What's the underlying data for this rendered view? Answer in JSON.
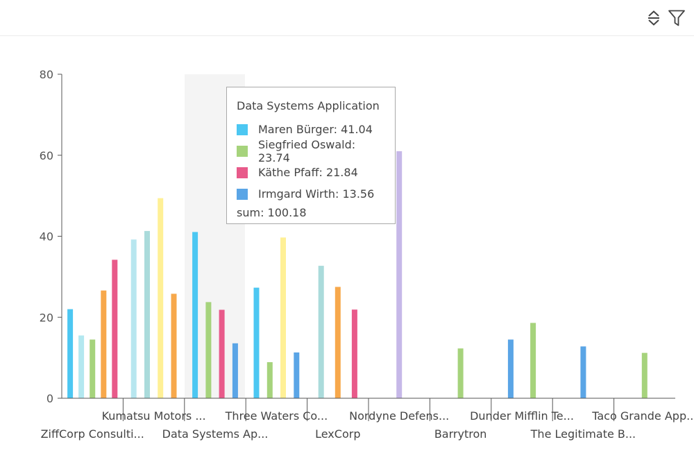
{
  "toolbar": {
    "icons": [
      "sort-icon",
      "filter-icon"
    ]
  },
  "colors": {
    "hover_band": "#f4f4f4",
    "axis": "#555555",
    "palette": [
      "#4cc7f2",
      "#b3e8f0",
      "#a6d37c",
      "#f7a84b",
      "#e85a8a",
      "#aadbdb",
      "#fff096",
      "#5aa5e6",
      "#c6b8e8",
      "#b7e6ef"
    ]
  },
  "chart_data": {
    "type": "bar",
    "ylim": [
      0,
      80
    ],
    "yticks": [
      0,
      20,
      40,
      60,
      80
    ],
    "grid": false,
    "categories": [
      "ZiffCorp Consulti...",
      "Kumatsu Motors ...",
      "Data Systems Ap...",
      "Three Waters Co...",
      "LexCorp",
      "Nordyne Defens...",
      "Barrytron",
      "Dunder Mifflin Te...",
      "The Legitimate B...",
      "Taco Grande App..."
    ],
    "highlighted_category": 2,
    "groups": [
      {
        "bars": [
          {
            "value": 22,
            "color": "#4cc7f2"
          },
          {
            "value": 15.5,
            "color": "#b3e8f0"
          },
          {
            "value": 14.5,
            "color": "#a6d37c"
          },
          {
            "value": 26.6,
            "color": "#f7a84b"
          },
          {
            "value": 34.2,
            "color": "#e85a8a"
          }
        ]
      },
      {
        "bars": [
          {
            "value": 39.2,
            "color": "#b7e6ef"
          },
          {
            "value": 41.3,
            "color": "#aadbdb"
          },
          {
            "value": 49.4,
            "color": "#fff096"
          },
          {
            "value": 25.8,
            "color": "#f7a84b"
          }
        ]
      },
      {
        "bars": [
          {
            "value": 41.04,
            "color": "#4cc7f2"
          },
          {
            "value": 23.74,
            "color": "#a6d37c"
          },
          {
            "value": 21.84,
            "color": "#e85a8a"
          },
          {
            "value": 13.56,
            "color": "#5aa5e6"
          }
        ]
      },
      {
        "bars": [
          {
            "value": 27.3,
            "color": "#4cc7f2"
          },
          {
            "value": 8.9,
            "color": "#a6d37c"
          },
          {
            "value": 39.7,
            "color": "#fff096"
          },
          {
            "value": 11.3,
            "color": "#5aa5e6"
          }
        ]
      },
      {
        "bars": [
          {
            "value": 32.7,
            "color": "#aadbdb"
          },
          {
            "value": 27.5,
            "color": "#f7a84b"
          },
          {
            "value": 21.9,
            "color": "#e85a8a"
          }
        ]
      },
      {
        "bars": [
          {
            "value": 61,
            "color": "#c6b8e8"
          }
        ]
      },
      {
        "bars": [
          {
            "value": 12.3,
            "color": "#a6d37c"
          }
        ]
      },
      {
        "bars": [
          {
            "value": 14.5,
            "color": "#5aa5e6"
          },
          {
            "value": 18.6,
            "color": "#a6d37c"
          }
        ]
      },
      {
        "bars": [
          {
            "value": 12.8,
            "color": "#5aa5e6"
          }
        ]
      },
      {
        "bars": [
          {
            "value": 11.2,
            "color": "#a6d37c"
          }
        ]
      }
    ]
  },
  "tooltip": {
    "title": "Data Systems Application",
    "rows": [
      {
        "label": "Maren Bürger: 41.04",
        "color": "#4cc7f2"
      },
      {
        "label": "Siegfried Oswald: 23.74",
        "color": "#a6d37c"
      },
      {
        "label": "Käthe Pfaff: 21.84",
        "color": "#e85a8a"
      },
      {
        "label": "Irmgard Wirth: 13.56",
        "color": "#5aa5e6"
      }
    ],
    "sum": "sum: 100.18"
  }
}
